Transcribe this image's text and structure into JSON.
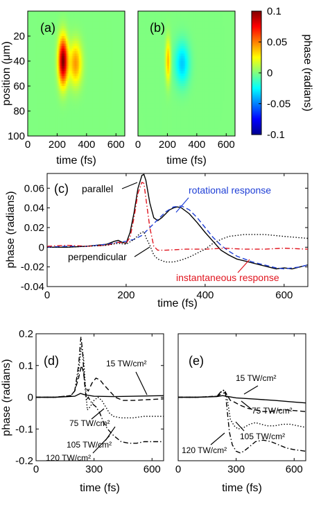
{
  "chart_data": [
    {
      "id": "a",
      "type": "heatmap",
      "panel_label": "(a)",
      "xlabel": "time (fs)",
      "ylabel": "position (μm)",
      "xlim": [
        0,
        660
      ],
      "ylim": [
        100,
        0
      ],
      "x_ticks": [
        "0",
        "200",
        "400",
        "600"
      ],
      "y_ticks": [
        "20",
        "40",
        "60",
        "80",
        "100"
      ],
      "background_value": 0.0,
      "blobs": [
        {
          "t_center": 240,
          "t_width": 22,
          "y_center": 40,
          "y_width": 13,
          "value": 0.1
        },
        {
          "t_center": 325,
          "t_width": 30,
          "y_center": 42,
          "y_width": 12,
          "value": 0.045
        }
      ]
    },
    {
      "id": "b",
      "type": "heatmap",
      "panel_label": "(b)",
      "xlabel": "time (fs)",
      "xlim": [
        0,
        660
      ],
      "ylim": [
        100,
        0
      ],
      "x_ticks": [
        "0",
        "200",
        "400",
        "600"
      ],
      "background_value": 0.0,
      "blobs": [
        {
          "t_center": 205,
          "t_width": 12,
          "y_center": 40,
          "y_width": 12,
          "value": 0.04
        },
        {
          "t_center": 300,
          "t_width": 35,
          "y_center": 42,
          "y_width": 12,
          "value": -0.035
        }
      ]
    },
    {
      "id": "colorbar",
      "type": "colorbar",
      "label": "phase (radians)",
      "range": [
        -0.1,
        0.1
      ],
      "ticks": [
        "0.1",
        "0.05",
        "0",
        "-0.05",
        "-0.1"
      ],
      "colormap": "jet"
    },
    {
      "id": "c",
      "type": "line",
      "panel_label": "(c)",
      "xlabel": "time (fs)",
      "ylabel": "phase (radians)",
      "xlim": [
        0,
        660
      ],
      "ylim": [
        -0.04,
        0.075
      ],
      "x_ticks": [
        "0",
        "200",
        "400",
        "600"
      ],
      "y_ticks": [
        "0.06",
        "0.04",
        "0.02",
        "0",
        "-0.02",
        "-0.04"
      ],
      "series": [
        {
          "name": "parallel",
          "color": "#000000",
          "dash": "solid",
          "x": [
            0,
            50,
            100,
            150,
            170,
            180,
            190,
            200,
            210,
            220,
            230,
            240,
            245,
            250,
            260,
            270,
            280,
            290,
            300,
            310,
            320,
            330,
            340,
            360,
            380,
            400,
            420,
            440,
            460,
            480,
            500,
            520,
            540,
            560,
            580,
            600,
            620,
            640,
            660
          ],
          "y": [
            0,
            0,
            0.001,
            0.003,
            0.006,
            0.007,
            0.005,
            0.004,
            0.015,
            0.035,
            0.06,
            0.073,
            0.074,
            0.068,
            0.045,
            0.03,
            0.027,
            0.03,
            0.034,
            0.038,
            0.04,
            0.041,
            0.04,
            0.034,
            0.025,
            0.015,
            0.006,
            -0.003,
            -0.008,
            -0.012,
            -0.014,
            -0.016,
            -0.018,
            -0.02,
            -0.022,
            -0.021,
            -0.022,
            -0.02,
            -0.018
          ]
        },
        {
          "color": "#1f3fd6",
          "dash": "dashed",
          "x": [
            0,
            50,
            100,
            150,
            180,
            200,
            220,
            240,
            260,
            280,
            300,
            320,
            340,
            360,
            380,
            400,
            420,
            440,
            460,
            480,
            500,
            520,
            540,
            560,
            580,
            600,
            620,
            640,
            660
          ],
          "y": [
            0,
            0.001,
            0.001,
            0.003,
            0.005,
            0.006,
            0.008,
            0.012,
            0.02,
            0.028,
            0.036,
            0.041,
            0.042,
            0.038,
            0.03,
            0.02,
            0.01,
            0.002,
            -0.004,
            -0.009,
            -0.012,
            -0.015,
            -0.017,
            -0.019,
            -0.021,
            -0.022,
            -0.021,
            -0.02,
            -0.018
          ]
        },
        {
          "color": "#e0141e",
          "dash": "dashdot",
          "x": [
            0,
            50,
            100,
            150,
            180,
            200,
            210,
            220,
            230,
            240,
            245,
            250,
            260,
            270,
            280,
            300,
            350,
            400,
            450,
            500,
            550,
            600,
            660
          ],
          "y": [
            0.001,
            0.002,
            0.001,
            0.002,
            0.005,
            0.004,
            0.01,
            0.03,
            0.055,
            0.066,
            0.065,
            0.05,
            0.02,
            0.001,
            -0.003,
            -0.003,
            -0.002,
            -0.002,
            -0.001,
            -0.002,
            -0.002,
            -0.001,
            -0.002
          ]
        },
        {
          "name": "perpendicular",
          "color": "#000000",
          "dash": "dotted",
          "x": [
            0,
            50,
            100,
            150,
            180,
            200,
            220,
            235,
            245,
            250,
            260,
            270,
            280,
            300,
            320,
            340,
            360,
            380,
            400,
            420,
            440,
            460,
            480,
            500,
            550,
            600,
            660
          ],
          "y": [
            0,
            0,
            0.001,
            0.002,
            0.004,
            0.003,
            0.008,
            0.014,
            0.016,
            0.01,
            0.002,
            -0.008,
            -0.012,
            -0.015,
            -0.015,
            -0.013,
            -0.01,
            -0.006,
            -0.002,
            0.004,
            0.008,
            0.011,
            0.012,
            0.013,
            0.013,
            0.011,
            0.009
          ]
        }
      ],
      "annotations": [
        {
          "text": "parallel",
          "color": "#000000"
        },
        {
          "text": "rotational response",
          "color": "#1f3fd6"
        },
        {
          "text": "perpendicular",
          "color": "#000000"
        },
        {
          "text": "instantaneous response",
          "color": "#e0141e"
        }
      ]
    },
    {
      "id": "d",
      "type": "line",
      "panel_label": "(d)",
      "xlabel": "time (fs)",
      "ylabel": "phase (radians)",
      "xlim": [
        0,
        660
      ],
      "ylim": [
        -0.2,
        0.2
      ],
      "x_ticks": [
        "0",
        "300",
        "600"
      ],
      "y_ticks": [
        "0.2",
        "0.1",
        "0",
        "-0.1",
        "-0.2"
      ],
      "series": [
        {
          "name": "15 TW/cm²",
          "dash": "solid",
          "x": [
            0,
            100,
            200,
            230,
            250,
            300,
            400,
            500,
            660
          ],
          "y": [
            0,
            0,
            0.003,
            0.012,
            0.008,
            0.003,
            0.002,
            0.003,
            0.005
          ]
        },
        {
          "name": "75 TW/cm²",
          "dash": "dashed",
          "x": [
            0,
            100,
            180,
            200,
            220,
            235,
            245,
            255,
            270,
            290,
            310,
            330,
            350,
            380,
            410,
            450,
            500,
            560,
            660
          ],
          "y": [
            0,
            0,
            0.005,
            0.02,
            0.06,
            0.1,
            0.08,
            0.03,
            0.02,
            0.045,
            0.06,
            0.055,
            0.04,
            0.02,
            0.0,
            -0.01,
            -0.01,
            -0.008,
            -0.005
          ]
        },
        {
          "name": "105 TW/cm²",
          "dash": "dotted",
          "x": [
            0,
            100,
            180,
            200,
            220,
            235,
            245,
            255,
            265,
            280,
            300,
            320,
            340,
            360,
            380,
            400,
            440,
            500,
            560,
            660
          ],
          "y": [
            0,
            0,
            0.005,
            0.02,
            0.08,
            0.16,
            0.13,
            0.04,
            -0.04,
            -0.03,
            -0.01,
            0.0,
            -0.01,
            -0.03,
            -0.05,
            -0.06,
            -0.065,
            -0.065,
            -0.06,
            -0.06
          ]
        },
        {
          "name": "120 TW/cm²",
          "dash": "dashdot",
          "x": [
            0,
            100,
            180,
            200,
            220,
            232,
            240,
            250,
            260,
            270,
            290,
            310,
            330,
            350,
            370,
            400,
            440,
            480,
            520,
            560,
            600,
            660
          ],
          "y": [
            0,
            0,
            0.005,
            0.02,
            0.1,
            0.19,
            0.15,
            0.05,
            -0.01,
            0.0,
            -0.02,
            -0.03,
            -0.05,
            -0.08,
            -0.1,
            -0.12,
            -0.14,
            -0.145,
            -0.145,
            -0.14,
            -0.14,
            -0.14
          ]
        }
      ]
    },
    {
      "id": "e",
      "type": "line",
      "panel_label": "(e)",
      "xlabel": "time (fs)",
      "xlim": [
        0,
        660
      ],
      "ylim": [
        -0.2,
        0.2
      ],
      "x_ticks": [
        "0",
        "300",
        "600"
      ],
      "series": [
        {
          "name": "15 TW/cm²",
          "dash": "solid",
          "x": [
            0,
            100,
            200,
            230,
            260,
            300,
            400,
            500,
            600,
            660
          ],
          "y": [
            0,
            0,
            0.002,
            0.005,
            0.002,
            -0.002,
            -0.006,
            -0.01,
            -0.015,
            -0.018
          ]
        },
        {
          "name": "75 TW/cm²",
          "dash": "dashed",
          "x": [
            0,
            100,
            200,
            230,
            245,
            255,
            270,
            290,
            320,
            360,
            400,
            440,
            480,
            520,
            560,
            600,
            660
          ],
          "y": [
            0,
            0,
            0.003,
            0.012,
            0.015,
            0.005,
            -0.01,
            -0.015,
            -0.025,
            -0.035,
            -0.04,
            -0.045,
            -0.045,
            -0.04,
            -0.04,
            -0.042,
            -0.045
          ]
        },
        {
          "name": "105 TW/cm²",
          "dash": "dotted",
          "x": [
            0,
            100,
            200,
            225,
            240,
            250,
            260,
            270,
            290,
            310,
            340,
            370,
            400,
            430,
            460,
            500,
            540,
            580,
            620,
            660
          ],
          "y": [
            0,
            0,
            0.003,
            0.018,
            0.022,
            0.01,
            -0.03,
            -0.07,
            -0.09,
            -0.1,
            -0.095,
            -0.085,
            -0.08,
            -0.085,
            -0.09,
            -0.09,
            -0.085,
            -0.085,
            -0.09,
            -0.095
          ]
        },
        {
          "name": "120 TW/cm²",
          "dash": "dashdot",
          "x": [
            0,
            100,
            200,
            225,
            235,
            245,
            255,
            265,
            280,
            300,
            320,
            340,
            370,
            400,
            440,
            480,
            520,
            560,
            600,
            660
          ],
          "y": [
            0,
            0,
            0.003,
            0.02,
            0.022,
            0.01,
            -0.05,
            -0.11,
            -0.15,
            -0.17,
            -0.175,
            -0.17,
            -0.155,
            -0.14,
            -0.135,
            -0.14,
            -0.15,
            -0.16,
            -0.165,
            -0.17
          ]
        }
      ]
    }
  ]
}
